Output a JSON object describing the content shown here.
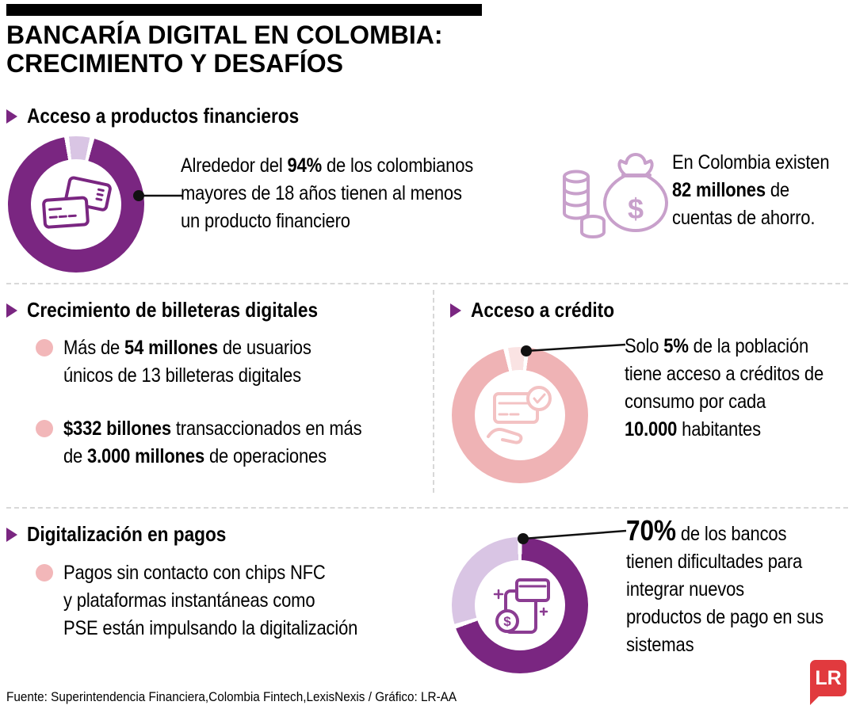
{
  "title": "BANCARÍA DIGITAL EN COLOMBIA:\nCRECIMIENTO Y DESAFÍOS",
  "colors": {
    "purple": "#7a2681",
    "lavender": "#d9c5e4",
    "pink": "#efb3b5",
    "pale_pink": "#fae3e3",
    "bullet_pink": "#f2b7b9",
    "logo_red": "#e13a3e"
  },
  "sections": {
    "productos": {
      "heading": "Acceso a productos financieros",
      "annotation": [
        {
          "t": "Alrededor del "
        },
        {
          "t": "94%",
          "b": true
        },
        {
          "t": " de los colombianos\nmayores de 18 años tienen al menos\nun producto financiero"
        }
      ],
      "savings_note": [
        {
          "t": "En Colombia existen\n"
        },
        {
          "t": "82 millones",
          "b": true
        },
        {
          "t": " de\ncuentas de ahorro."
        }
      ]
    },
    "billeteras": {
      "heading": "Crecimiento de billeteras digitales",
      "bullet1": [
        {
          "t": "Más de "
        },
        {
          "t": "54 millones",
          "b": true
        },
        {
          "t": " de usuarios\núnicos de 13 billeteras digitales"
        }
      ],
      "bullet2": [
        {
          "t": "$332 billones",
          "b": true
        },
        {
          "t": " transaccionados en más\nde "
        },
        {
          "t": "3.000 millones",
          "b": true
        },
        {
          "t": " de operaciones"
        }
      ]
    },
    "credito": {
      "heading": "Acceso a crédito",
      "annotation": [
        {
          "t": "Solo "
        },
        {
          "t": "5%",
          "b": true
        },
        {
          "t": " de la población\ntiene acceso a créditos de\nconsumo por cada\n"
        },
        {
          "t": "10.000",
          "b": true
        },
        {
          "t": " habitantes"
        }
      ]
    },
    "pagos": {
      "heading": "Digitalización en pagos",
      "bullet1": [
        {
          "t": "Pagos sin contacto con chips NFC\ny plataformas instantáneas como\nPSE están impulsando la digitalización"
        }
      ],
      "annotation": [
        {
          "t": "70%",
          "b": true,
          "s": 36
        },
        {
          "t": " de los bancos\ntienen dificultades para\nintegrar nuevos\nproductos de pago en sus\nsistemas"
        }
      ]
    }
  },
  "footer": {
    "source": "Fuente: Superintendencia Financiera,Colombia Fintech,LexisNexis / Gráfico: LR-AA",
    "logo": "LR"
  },
  "chart_data": [
    {
      "type": "pie",
      "id": "acceso-productos-financieros",
      "donut": true,
      "rotation": -8,
      "gap_deg": 2,
      "segments": [
        {
          "value": 6,
          "color": "#d9c5e4"
        },
        {
          "value": 94,
          "color": "#7a2681"
        }
      ],
      "note": "Alrededor del 94% de los colombianos mayores de 18 años tienen al menos un producto financiero",
      "center_icon": "credit-cards-icon"
    },
    {
      "type": "pie",
      "id": "acceso-credito",
      "donut": true,
      "rotation": -12,
      "gap_deg": 2,
      "segments": [
        {
          "value": 5,
          "color": "#fae3e3"
        },
        {
          "value": 95,
          "color": "#efb3b5"
        }
      ],
      "note": "Solo 5% de la población tiene acceso a créditos de consumo por cada 10.000 habitantes",
      "center_icon": "credit-approval-icon"
    },
    {
      "type": "pie",
      "id": "dificultades-bancos-pagos",
      "donut": true,
      "rotation": 0,
      "gap_deg": 2,
      "segments": [
        {
          "value": 70,
          "color": "#7a2681"
        },
        {
          "value": 30,
          "color": "#d9c5e4"
        }
      ],
      "note": "70% de los bancos tienen dificultades para integrar nuevos productos de pago en sus sistemas",
      "center_icon": "mobile-payment-icon"
    }
  ]
}
